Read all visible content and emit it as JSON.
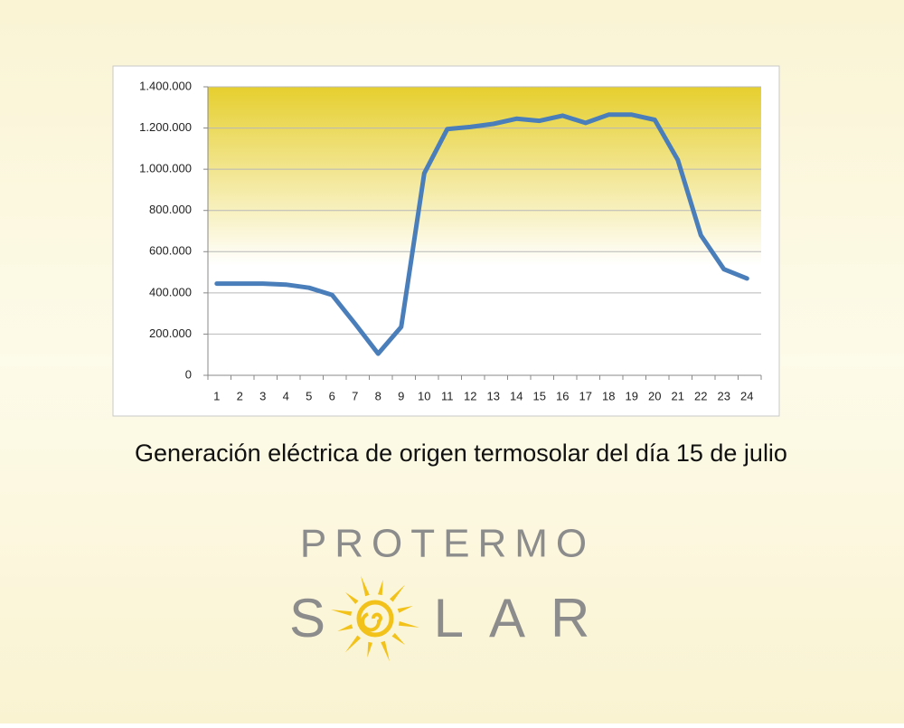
{
  "chart_data": {
    "type": "line",
    "title": "Generación eléctrica de origen termosolar del día 15 de julio",
    "categories": [
      "1",
      "2",
      "3",
      "4",
      "5",
      "6",
      "7",
      "8",
      "9",
      "10",
      "11",
      "12",
      "13",
      "14",
      "15",
      "16",
      "17",
      "18",
      "19",
      "20",
      "21",
      "22",
      "23",
      "24"
    ],
    "series": [
      {
        "name": "Generación",
        "color": "#4a7ebb",
        "values": [
          445000,
          445000,
          445000,
          440000,
          425000,
          390000,
          250000,
          105000,
          235000,
          980000,
          1195000,
          1205000,
          1220000,
          1245000,
          1235000,
          1260000,
          1225000,
          1265000,
          1265000,
          1240000,
          1045000,
          680000,
          515000,
          470000
        ]
      }
    ],
    "ylim": [
      0,
      1400000
    ],
    "yticks": [
      0,
      {
        "value": 200000,
        "label": "200.000"
      },
      {
        "value": 400000,
        "label": "400.000"
      },
      {
        "value": 600000,
        "label": "600.000"
      },
      {
        "value": 800000,
        "label": "800.000"
      },
      {
        "value": 1000000,
        "label": "1.000.000"
      },
      {
        "value": 1200000,
        "label": "1.200.000"
      },
      {
        "value": 1400000,
        "label": "1.400.000"
      }
    ],
    "grid": true
  },
  "logo": {
    "top": "PROTERMO",
    "bottom_left": "S",
    "bottom_right": "LAR"
  }
}
